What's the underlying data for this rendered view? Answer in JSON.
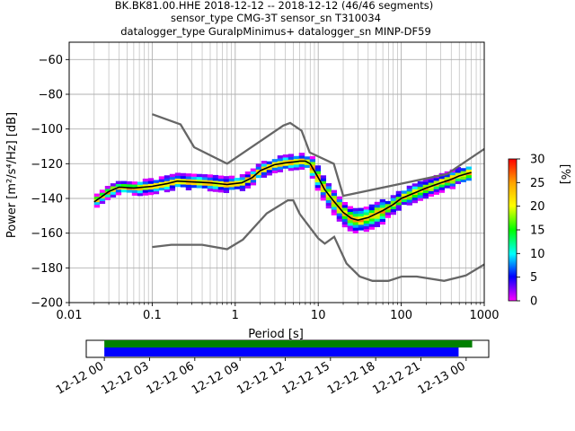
{
  "chart_data": [
    {
      "type": "heatmap",
      "title_lines": [
        "BK.BK81.00.HHE   2018-12-12 -- 2018-12-12  (46/46 segments)",
        "sensor_type CMG-3T sensor_sn T310034",
        "datalogger_type GuralpMinimus+ datalogger_sn MINP-DF59"
      ],
      "xlabel": "Period [s]",
      "ylabel": "Power [m²/s⁴/Hz] [dB]",
      "xscale": "log",
      "xlim": [
        0.01,
        1000
      ],
      "ylim": [
        -200,
        -50
      ],
      "grid": true,
      "x_ticks": [
        0.01,
        0.1,
        1,
        10,
        100,
        1000
      ],
      "x_tick_labels": [
        "0.01",
        "0.1",
        "1",
        "10",
        "100",
        "1000"
      ],
      "y_ticks": [
        -200,
        -180,
        -160,
        -140,
        -120,
        -100,
        -80,
        -60
      ],
      "y_tick_labels": [
        "−200",
        "−180",
        "−160",
        "−140",
        "−120",
        "−100",
        "−80",
        "−60"
      ],
      "colorbar": {
        "label": "[%]",
        "range": [
          0,
          30
        ],
        "ticks": [
          "0",
          "5",
          "10",
          "15",
          "20",
          "25",
          "30"
        ]
      },
      "nhnm": [
        [
          0.1,
          -91.5
        ],
        [
          0.22,
          -97.4
        ],
        [
          0.32,
          -110.5
        ],
        [
          0.8,
          -120
        ],
        [
          3.8,
          -98
        ],
        [
          4.6,
          -96.5
        ],
        [
          6.3,
          -101
        ],
        [
          7.9,
          -113.5
        ],
        [
          15.4,
          -120
        ],
        [
          20,
          -138.5
        ],
        [
          354.8,
          -126
        ],
        [
          1000,
          -111.5
        ]
      ],
      "nlnm": [
        [
          0.1,
          -168
        ],
        [
          0.17,
          -166.7
        ],
        [
          0.4,
          -166.7
        ],
        [
          0.8,
          -169.2
        ],
        [
          1.24,
          -163.7
        ],
        [
          2.4,
          -148.6
        ],
        [
          4.3,
          -141.1
        ],
        [
          5,
          -141.1
        ],
        [
          6,
          -149
        ],
        [
          10,
          -163
        ],
        [
          12,
          -166
        ],
        [
          15.6,
          -162.1
        ],
        [
          21.9,
          -177.5
        ],
        [
          31.6,
          -185
        ],
        [
          45,
          -187.5
        ],
        [
          70,
          -187.5
        ],
        [
          101,
          -185
        ],
        [
          154,
          -185
        ],
        [
          328,
          -187.5
        ],
        [
          600,
          -184.4
        ],
        [
          1000,
          -178
        ]
      ],
      "mean_curve": [
        [
          0.02,
          -142
        ],
        [
          0.03,
          -136
        ],
        [
          0.04,
          -133.5
        ],
        [
          0.06,
          -134
        ],
        [
          0.1,
          -133
        ],
        [
          0.15,
          -131.5
        ],
        [
          0.2,
          -130
        ],
        [
          0.3,
          -130.5
        ],
        [
          0.5,
          -131
        ],
        [
          0.8,
          -132
        ],
        [
          1.2,
          -131
        ],
        [
          1.6,
          -128
        ],
        [
          2,
          -124
        ],
        [
          3,
          -120.5
        ],
        [
          4,
          -119.5
        ],
        [
          5,
          -119
        ],
        [
          6,
          -118.5
        ],
        [
          7,
          -118.5
        ],
        [
          8,
          -120
        ],
        [
          10,
          -128
        ],
        [
          12,
          -135
        ],
        [
          15,
          -141
        ],
        [
          20,
          -148
        ],
        [
          25,
          -151.5
        ],
        [
          30,
          -152.5
        ],
        [
          40,
          -151
        ],
        [
          60,
          -147
        ],
        [
          80,
          -143.5
        ],
        [
          100,
          -140
        ],
        [
          150,
          -136.5
        ],
        [
          200,
          -134
        ],
        [
          300,
          -131
        ],
        [
          400,
          -129
        ],
        [
          500,
          -127
        ],
        [
          700,
          -125
        ]
      ]
    },
    {
      "type": "bar",
      "orientation": "horizontal",
      "x_tick_labels": [
        "12-12 00",
        "12-12 03",
        "12-12 06",
        "12-12 09",
        "12-12 12",
        "12-12 15",
        "12-12 18",
        "12-12 21",
        "12-13 00"
      ],
      "xlim_hours": [
        -1.2,
        25.5
      ],
      "series": [
        {
          "color": "#008000",
          "start_hour": 0,
          "end_hour": 24.4
        },
        {
          "color": "#0000ff",
          "start_hour": 0,
          "end_hour": 23.5
        }
      ]
    }
  ]
}
